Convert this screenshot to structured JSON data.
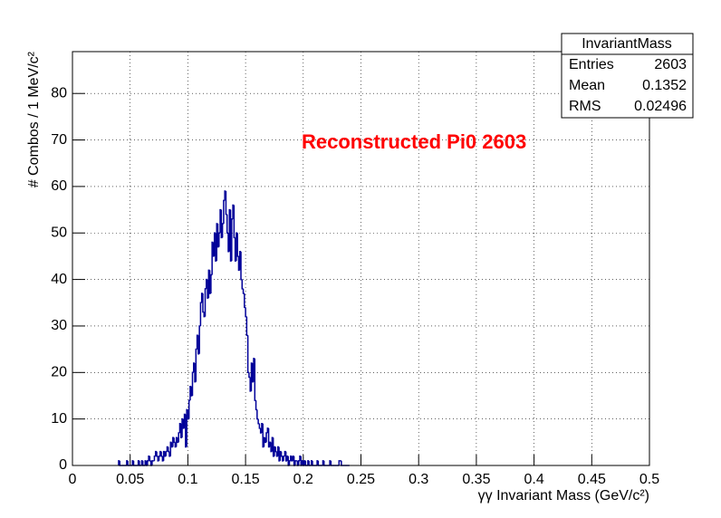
{
  "chart_data": {
    "type": "histogram",
    "annotation": "Reconstructed Pi0 2603",
    "xlabel": "γγ Invariant Mass (GeV/c²)",
    "ylabel": "# Combos / 1 MeV/c²",
    "color": "#000099",
    "annotation_color": "#ff0000",
    "grid": true,
    "stats": {
      "title": "InvariantMass",
      "rows": [
        [
          "Entries",
          "2603"
        ],
        [
          "Mean",
          "0.1352"
        ],
        [
          "RMS",
          "0.02496"
        ]
      ]
    },
    "xlim": [
      0,
      0.5
    ],
    "ylim": [
      0,
      89
    ],
    "xticks": [
      0,
      0.05,
      0.1,
      0.15,
      0.2,
      0.25,
      0.3,
      0.35,
      0.4,
      0.45,
      0.5
    ],
    "yticks": [
      0,
      10,
      20,
      30,
      40,
      50,
      60,
      70,
      80
    ],
    "bins": [
      0.04,
      0.041,
      0.042,
      0.043,
      0.044,
      0.045,
      0.046,
      0.047,
      0.048,
      0.049,
      0.05,
      0.051,
      0.052,
      0.053,
      0.054,
      0.055,
      0.056,
      0.057,
      0.058,
      0.059,
      0.06,
      0.061,
      0.062,
      0.063,
      0.064,
      0.065,
      0.066,
      0.067,
      0.068,
      0.069,
      0.07,
      0.071,
      0.072,
      0.073,
      0.074,
      0.075,
      0.076,
      0.077,
      0.078,
      0.079,
      0.08,
      0.081,
      0.082,
      0.083,
      0.084,
      0.085,
      0.086,
      0.087,
      0.088,
      0.089,
      0.09,
      0.091,
      0.092,
      0.093,
      0.094,
      0.095,
      0.096,
      0.097,
      0.098,
      0.099,
      0.1,
      0.101,
      0.102,
      0.103,
      0.104,
      0.105,
      0.106,
      0.107,
      0.108,
      0.109,
      0.11,
      0.111,
      0.112,
      0.113,
      0.114,
      0.115,
      0.116,
      0.117,
      0.118,
      0.119,
      0.12,
      0.121,
      0.122,
      0.123,
      0.124,
      0.125,
      0.126,
      0.127,
      0.128,
      0.129,
      0.13,
      0.131,
      0.132,
      0.133,
      0.134,
      0.135,
      0.136,
      0.137,
      0.138,
      0.139,
      0.14,
      0.141,
      0.142,
      0.143,
      0.144,
      0.145,
      0.146,
      0.147,
      0.148,
      0.149,
      0.15,
      0.151,
      0.152,
      0.153,
      0.154,
      0.155,
      0.156,
      0.157,
      0.158,
      0.159,
      0.16,
      0.161,
      0.162,
      0.163,
      0.164,
      0.165,
      0.166,
      0.167,
      0.168,
      0.169,
      0.17,
      0.171,
      0.172,
      0.173,
      0.174,
      0.175,
      0.176,
      0.177,
      0.178,
      0.179,
      0.18,
      0.181,
      0.182,
      0.183,
      0.184,
      0.185,
      0.186,
      0.187,
      0.188,
      0.189,
      0.19,
      0.191,
      0.192,
      0.193,
      0.194,
      0.195,
      0.196,
      0.197,
      0.198,
      0.199,
      0.2,
      0.201,
      0.202,
      0.203,
      0.204,
      0.205,
      0.206,
      0.207,
      0.208,
      0.209,
      0.21,
      0.211,
      0.212,
      0.213,
      0.214,
      0.215,
      0.216,
      0.217,
      0.218,
      0.219,
      0.22,
      0.221,
      0.222,
      0.223,
      0.224,
      0.225,
      0.226,
      0.227,
      0.228,
      0.229,
      0.23,
      0.231,
      0.232,
      0.233,
      0.234,
      0.235,
      0.236,
      0.237,
      0.238,
      0.239,
      0.24
    ],
    "values": [
      1,
      0,
      0,
      0,
      0,
      0,
      0,
      1,
      0,
      0,
      0,
      0,
      1,
      0,
      0,
      0,
      0,
      1,
      0,
      0,
      1,
      0,
      0,
      1,
      0,
      1,
      2,
      1,
      0,
      1,
      1,
      2,
      3,
      2,
      1,
      2,
      3,
      2,
      1,
      3,
      2,
      3,
      4,
      3,
      2,
      5,
      4,
      6,
      5,
      4,
      6,
      5,
      7,
      9,
      6,
      10,
      8,
      11,
      4,
      12,
      10,
      14,
      17,
      15,
      20,
      22,
      18,
      25,
      28,
      24,
      30,
      35,
      37,
      33,
      32,
      38,
      40,
      36,
      42,
      37,
      41,
      48,
      45,
      50,
      44,
      52,
      47,
      50,
      55,
      49,
      52,
      57,
      59,
      54,
      50,
      46,
      55,
      44,
      53,
      56,
      49,
      44,
      50,
      45,
      42,
      46,
      40,
      38,
      37,
      34,
      32,
      28,
      20,
      19,
      16,
      22,
      18,
      23,
      14,
      12,
      10,
      9,
      8,
      7,
      9,
      4,
      6,
      5,
      7,
      8,
      4,
      5,
      3,
      6,
      2,
      4,
      3,
      2,
      4,
      1,
      3,
      2,
      1,
      2,
      3,
      1,
      2,
      0,
      1,
      2,
      1,
      2,
      0,
      1,
      1,
      0,
      1,
      2,
      0,
      1,
      0,
      1,
      0,
      0,
      1,
      0,
      0,
      1,
      0,
      0,
      0,
      0,
      1,
      0,
      0,
      0,
      0,
      1,
      0,
      0,
      0,
      0,
      0,
      1,
      0,
      0,
      0,
      0,
      0,
      0,
      0,
      1,
      1,
      0,
      0,
      0,
      0,
      0,
      0,
      0
    ]
  }
}
